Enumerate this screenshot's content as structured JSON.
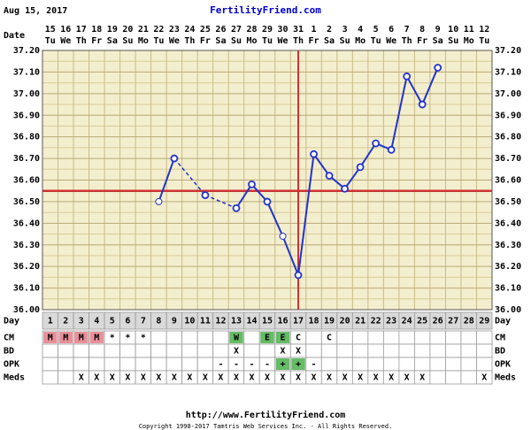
{
  "header": {
    "date": "Aug 15, 2017",
    "site": "FertilityFriend.com"
  },
  "footer": {
    "url": "http://www.FertilityFriend.com",
    "copyright": "Copyright 1998-2017 Tamtris Web Services Inc. - All Rights Reserved."
  },
  "chart_data": {
    "type": "line",
    "date_label": "Date",
    "day_label": "Day",
    "dates": [
      15,
      16,
      17,
      18,
      19,
      20,
      21,
      22,
      23,
      24,
      25,
      26,
      27,
      28,
      29,
      30,
      31,
      1,
      2,
      3,
      4,
      5,
      6,
      7,
      8,
      9,
      10,
      11,
      12
    ],
    "weekdays": [
      "Tu",
      "We",
      "Th",
      "Fr",
      "Sa",
      "Su",
      "Mo",
      "Tu",
      "We",
      "Th",
      "Fr",
      "Sa",
      "Su",
      "Mo",
      "Tu",
      "We",
      "Th",
      "Fr",
      "Sa",
      "Su",
      "Mo",
      "Tu",
      "We",
      "Th",
      "Fr",
      "Sa",
      "Su",
      "Mo",
      "Tu"
    ],
    "categories": [
      1,
      2,
      3,
      4,
      5,
      6,
      7,
      8,
      9,
      10,
      11,
      12,
      13,
      14,
      15,
      16,
      17,
      18,
      19,
      20,
      21,
      22,
      23,
      24,
      25,
      26,
      27,
      28,
      29
    ],
    "series": [
      {
        "color": "#2233cc",
        "values": [
          null,
          null,
          null,
          null,
          null,
          null,
          null,
          36.5,
          36.7,
          null,
          36.53,
          null,
          36.47,
          36.58,
          36.5,
          36.34,
          36.16,
          36.72,
          36.62,
          36.56,
          36.66,
          36.77,
          36.74,
          37.08,
          36.95,
          37.12,
          null,
          null,
          null
        ]
      }
    ],
    "hollow_days": [
      8,
      16
    ],
    "coverline": 36.55,
    "ovulation_day": 17,
    "marker_color": "#cc3333",
    "ylim": [
      36.0,
      37.2
    ],
    "yticks": [
      {
        "value": 36.0,
        "label": "36.00"
      },
      {
        "value": 36.1,
        "label": "36.10"
      },
      {
        "value": 36.2,
        "label": "36.20"
      },
      {
        "value": 36.3,
        "label": "36.30"
      },
      {
        "value": 36.4,
        "label": "36.40"
      },
      {
        "value": 36.5,
        "label": "36.50"
      },
      {
        "value": 36.6,
        "label": "36.60"
      },
      {
        "value": 36.7,
        "label": "36.70"
      },
      {
        "value": 36.8,
        "label": "36.80"
      },
      {
        "value": 36.9,
        "label": "36.90"
      },
      {
        "value": 37.0,
        "label": "37.00"
      },
      {
        "value": 37.1,
        "label": "37.10"
      },
      {
        "value": 37.2,
        "label": "37.20"
      }
    ],
    "grid": true,
    "cell_colors": {
      "M": "#e8909a",
      "W": "#66bb66",
      "E": "#66bb66",
      "+": "#66bb66"
    },
    "rows": [
      {
        "label": "CM",
        "values": [
          "M",
          "M",
          "M",
          "M",
          "*",
          "*",
          "*",
          null,
          null,
          null,
          null,
          null,
          "W",
          null,
          "E",
          "E",
          "C",
          null,
          "C",
          null,
          null,
          null,
          null,
          null,
          null,
          null,
          null,
          null,
          null
        ]
      },
      {
        "label": "BD",
        "values": [
          null,
          null,
          null,
          null,
          null,
          null,
          null,
          null,
          null,
          null,
          null,
          null,
          "X",
          null,
          null,
          "X",
          "X",
          null,
          null,
          null,
          null,
          null,
          null,
          null,
          null,
          null,
          null,
          null,
          null
        ]
      },
      {
        "label": "OPK",
        "values": [
          null,
          null,
          null,
          null,
          null,
          null,
          null,
          null,
          null,
          null,
          null,
          "-",
          "-",
          "-",
          "-",
          "+",
          "+",
          "-",
          null,
          null,
          null,
          null,
          null,
          null,
          null,
          null,
          null,
          null,
          null
        ]
      },
      {
        "label": "Meds",
        "values": [
          null,
          null,
          "X",
          "X",
          "X",
          "X",
          "X",
          "X",
          "X",
          "X",
          "X",
          "X",
          "X",
          "X",
          "X",
          "X",
          "X",
          "X",
          "X",
          "X",
          "X",
          "X",
          "X",
          "X",
          "X",
          null,
          null,
          null,
          "X"
        ]
      }
    ]
  }
}
